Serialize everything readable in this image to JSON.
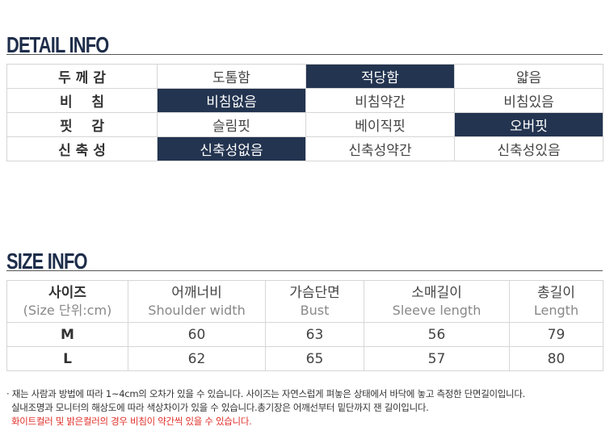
{
  "detail": {
    "title": "DETAIL INFO",
    "rows": [
      {
        "label": "두 께 감",
        "options": [
          "도톰함",
          "적당함",
          "얇음"
        ],
        "selected": 1
      },
      {
        "label": "비    침",
        "options": [
          "비침없음",
          "비침약간",
          "비침있음"
        ],
        "selected": 0
      },
      {
        "label": "핏    감",
        "options": [
          "슬림핏",
          "베이직핏",
          "오버핏"
        ],
        "selected": 2
      },
      {
        "label": "신 축 성",
        "options": [
          "신축성없음",
          "신축성약간",
          "신축성있음"
        ],
        "selected": 0
      }
    ]
  },
  "size": {
    "title": "SIZE INFO",
    "headers": [
      {
        "ko": "사이즈",
        "en": "(Size 단위:cm)"
      },
      {
        "ko": "어깨너비",
        "en": "Shoulder width"
      },
      {
        "ko": "가슴단면",
        "en": "Bust"
      },
      {
        "ko": "소매길이",
        "en": "Sleeve length"
      },
      {
        "ko": "총길이",
        "en": "Length"
      }
    ],
    "rows": [
      {
        "label": "M",
        "values": [
          60,
          63,
          56,
          79
        ]
      },
      {
        "label": "L",
        "values": [
          62,
          65,
          57,
          80
        ]
      }
    ]
  },
  "notes": [
    "· 재는 사람과 방법에 따라 1~4cm의 오차가 있을 수 있습니다. 사이즈는 자연스럽게 펴놓은 상태에서 바닥에 놓고 측정한 단면길이입니다.",
    "실내조명과 모니터의 해상도에 따라 색상차이가 있을 수 있습니다.총기장은 어깨선부터 밑단까지 잰 길이입니다.",
    "화이트컬러 및 밝은컬러의 경우 비침이 약간씩 있을 수 있습니다."
  ]
}
